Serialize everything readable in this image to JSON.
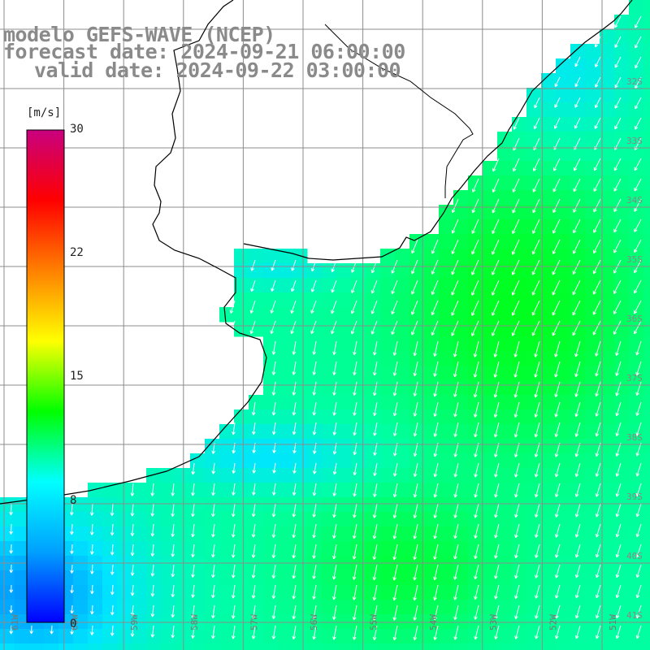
{
  "header": {
    "model": "modelo GEFS-WAVE (NCEP)",
    "forecast": "forecast date: 2024-09-21 06:00:00",
    "valid": "valid date: 2024-09-22 03:00:00"
  },
  "colorbar": {
    "unit": "[m/s]",
    "min": 0,
    "max": 30,
    "ticks": [
      "30",
      "22",
      "15",
      "8",
      "0"
    ],
    "colors": [
      "#0000ff",
      "#00a0ff",
      "#00ffff",
      "#00ff00",
      "#ffff00",
      "#ff8000",
      "#ff0000",
      "#c8007f"
    ]
  },
  "lon_labels": [
    "61W",
    "60W",
    "59W",
    "58W",
    "57W",
    "56W",
    "55W",
    "54W",
    "53W",
    "52W",
    "51W"
  ],
  "lat_labels": [
    "32S",
    "33S",
    "34S",
    "35S",
    "36S",
    "37S",
    "38S",
    "39S",
    "40S",
    "41S"
  ],
  "map": {
    "land_color": "#ffffff",
    "grid_color": "#9a9a9a",
    "coast_color": "#000000",
    "arrow_color": "#ffffff",
    "ocean_palette": {
      "low": "#0000ff",
      "mid": "#00e6ff",
      "high": "#00ff00"
    }
  }
}
